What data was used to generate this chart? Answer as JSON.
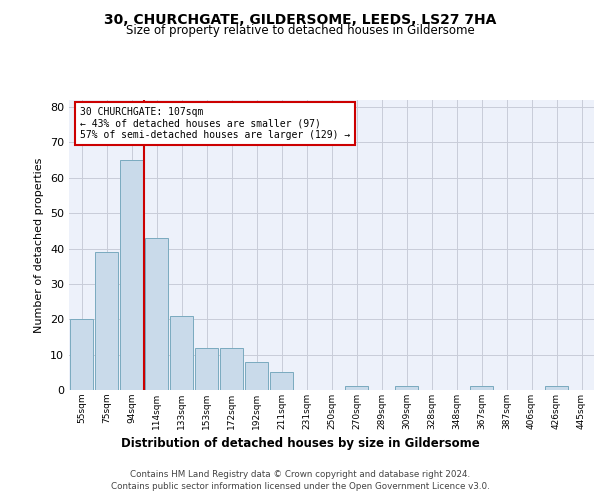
{
  "title1": "30, CHURCHGATE, GILDERSOME, LEEDS, LS27 7HA",
  "title2": "Size of property relative to detached houses in Gildersome",
  "xlabel": "Distribution of detached houses by size in Gildersome",
  "ylabel": "Number of detached properties",
  "categories": [
    "55sqm",
    "75sqm",
    "94sqm",
    "114sqm",
    "133sqm",
    "153sqm",
    "172sqm",
    "192sqm",
    "211sqm",
    "231sqm",
    "250sqm",
    "270sqm",
    "289sqm",
    "309sqm",
    "328sqm",
    "348sqm",
    "367sqm",
    "387sqm",
    "406sqm",
    "426sqm",
    "445sqm"
  ],
  "values": [
    20,
    39,
    65,
    43,
    21,
    12,
    12,
    8,
    5,
    0,
    0,
    1,
    0,
    1,
    0,
    0,
    1,
    0,
    0,
    1,
    0
  ],
  "bar_color": "#c9daea",
  "bar_edgecolor": "#7aaabf",
  "vline_index": 2.5,
  "vline_color": "#cc0000",
  "annotation_line1": "30 CHURCHGATE: 107sqm",
  "annotation_line2": "← 43% of detached houses are smaller (97)",
  "annotation_line3": "57% of semi-detached houses are larger (129) →",
  "ann_box_edgecolor": "#cc0000",
  "ylim": [
    0,
    82
  ],
  "yticks": [
    0,
    10,
    20,
    30,
    40,
    50,
    60,
    70,
    80
  ],
  "grid_color": "#c8ccd8",
  "bg_color": "#edf1fa",
  "footer1": "Contains HM Land Registry data © Crown copyright and database right 2024.",
  "footer2": "Contains public sector information licensed under the Open Government Licence v3.0."
}
